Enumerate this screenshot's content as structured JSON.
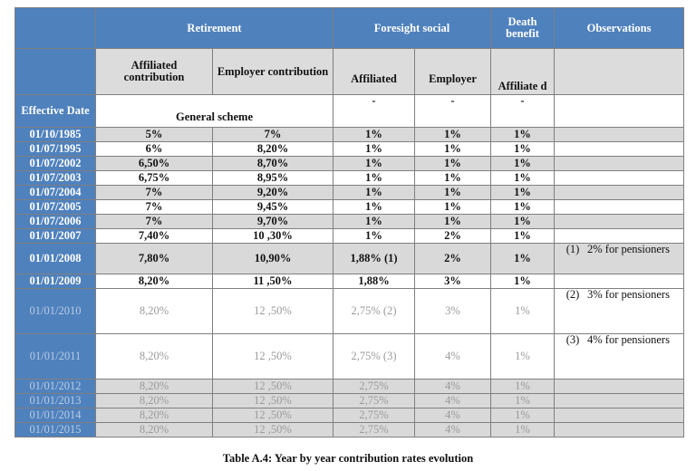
{
  "table": {
    "header": {
      "retirement": "Retirement",
      "foresight_social": "Foresight social",
      "death_benefit": "Death benefit",
      "observations": "Observations"
    },
    "subheader": {
      "affiliated_contribution": "Affiliated contribution",
      "employer_contribution": "Employer contribution",
      "affiliated": "Affiliated",
      "employer": "Employer",
      "death_affiliated": "Affiliate d"
    },
    "effective_date_label": "Effective Date",
    "general_scheme": "General scheme",
    "dash": "-",
    "rows": [
      {
        "date": "01/10/1985",
        "aff": "5%",
        "emp": "7%",
        "fs_aff": "1%",
        "fs_emp": "1%",
        "death": "1%"
      },
      {
        "date": "01/07/1995",
        "aff": "6%",
        "emp": "8,20%",
        "fs_aff": "1%",
        "fs_emp": "1%",
        "death": "1%"
      },
      {
        "date": "01/07/2002",
        "aff": "6,50%",
        "emp": "8,70%",
        "fs_aff": "1%",
        "fs_emp": "1%",
        "death": "1%"
      },
      {
        "date": "01/07/2003",
        "aff": "6,75%",
        "emp": "8,95%",
        "fs_aff": "1%",
        "fs_emp": "1%",
        "death": "1%"
      },
      {
        "date": "01/07/2004",
        "aff": "7%",
        "emp": "9,20%",
        "fs_aff": "1%",
        "fs_emp": "1%",
        "death": "1%"
      },
      {
        "date": "01/07/2005",
        "aff": "7%",
        "emp": "9,45%",
        "fs_aff": "1%",
        "fs_emp": "1%",
        "death": "1%"
      },
      {
        "date": "01/07/2006",
        "aff": "7%",
        "emp": "9,70%",
        "fs_aff": "1%",
        "fs_emp": "1%",
        "death": "1%"
      },
      {
        "date": "01/01/2007",
        "aff": "7,40%",
        "emp": "10 ,30%",
        "fs_aff": "1%",
        "fs_emp": "2%",
        "death": "1%"
      },
      {
        "date": "01/01/2008",
        "aff": "7,80%",
        "emp": "10,90%",
        "fs_aff": "1,88% (1)",
        "fs_emp": "2%",
        "death": "1%",
        "obs_num": "(1)",
        "obs_text": "2% for pensioners"
      },
      {
        "date": "01/01/2009",
        "aff": "8,20%",
        "emp": "11 ,50%",
        "fs_aff": "1,88%",
        "fs_emp": "3%",
        "death": "1%"
      },
      {
        "date": "01/01/2010",
        "aff": "8,20%",
        "emp": "12 ,50%",
        "fs_aff": "2,75% (2)",
        "fs_emp": "3%",
        "death": "1%",
        "obs_num": "(2)",
        "obs_text": "3% for pensioners"
      },
      {
        "date": "01/01/2011",
        "aff": "8,20%",
        "emp": "12 ,50%",
        "fs_aff": "2,75% (3)",
        "fs_emp": "4%",
        "death": "1%",
        "obs_num": "(3)",
        "obs_text": "4% for pensioners"
      },
      {
        "date": "01/01/2012",
        "aff": "8,20%",
        "emp": "12 ,50%",
        "fs_aff": "2,75%",
        "fs_emp": "4%",
        "death": "1%"
      },
      {
        "date": "01/01/2013",
        "aff": "8,20%",
        "emp": "12 ,50%",
        "fs_aff": "2,75%",
        "fs_emp": "4%",
        "death": "1%"
      },
      {
        "date": "01/01/2014",
        "aff": "8,20%",
        "emp": "12 ,50%",
        "fs_aff": "2,75%",
        "fs_emp": "4%",
        "death": "1%"
      },
      {
        "date": "01/01/2015",
        "aff": "8,20%",
        "emp": "12 ,50%",
        "fs_aff": "2,75%",
        "fs_emp": "4%",
        "death": "1%"
      }
    ]
  },
  "caption": "Table A.4: Year by year contribution rates evolution"
}
